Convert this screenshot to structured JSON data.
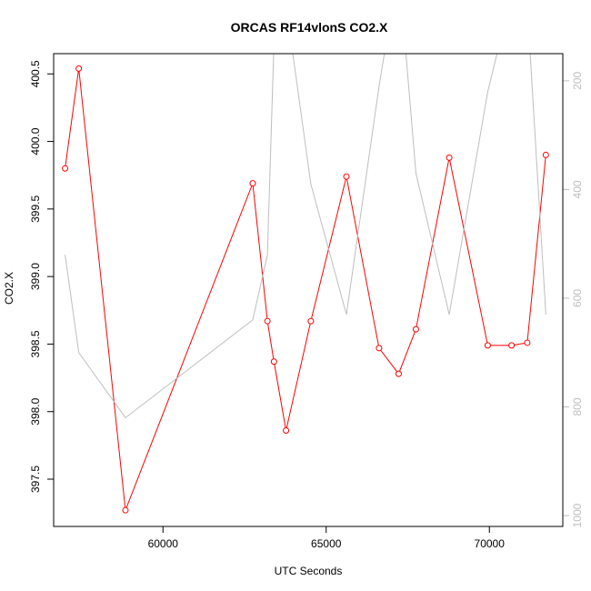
{
  "chart_data": {
    "type": "line",
    "title": "ORCAS RF14vlonS CO2.X",
    "xlabel": "UTC Seconds",
    "ylabel": "CO2.X",
    "xlim": [
      56650,
      72250
    ],
    "ylim": [
      397.15,
      400.65
    ],
    "y2lim": [
      1020,
      150
    ],
    "y2_inverted": true,
    "x_ticks": [
      60000,
      65000,
      70000
    ],
    "x_tick_labels": [
      "60000",
      "65000",
      "70000"
    ],
    "y_ticks": [
      397.5,
      398.0,
      398.5,
      399.0,
      399.5,
      400.0,
      400.5
    ],
    "y_tick_labels": [
      "397.5",
      "398.0",
      "398.5",
      "399.0",
      "399.5",
      "400.0",
      "400.5"
    ],
    "y2_ticks": [
      200,
      400,
      600,
      800,
      1000
    ],
    "y2_tick_labels": [
      "200",
      "400",
      "600",
      "800",
      "1000"
    ],
    "grid": false,
    "series": [
      {
        "axis": "left",
        "color": "#ff0000",
        "marker": "open-circle",
        "x": [
          57000,
          57420,
          58850,
          62750,
          63200,
          63400,
          63770,
          64530,
          65620,
          66620,
          67220,
          67750,
          68770,
          69950,
          70680,
          71160,
          71730
        ],
        "values": [
          399.8,
          400.54,
          397.27,
          399.69,
          398.67,
          398.37,
          397.86,
          398.67,
          399.74,
          398.47,
          398.28,
          398.61,
          399.88,
          398.49,
          398.49,
          398.51,
          399.9
        ]
      },
      {
        "axis": "right",
        "color": "#bebebe",
        "marker": "none",
        "x": [
          57000,
          57420,
          58850,
          62750,
          63200,
          63400,
          63770,
          64530,
          65620,
          66620,
          67220,
          67750,
          68770,
          69950,
          70680,
          71160,
          71730
        ],
        "values": [
          520,
          700,
          820,
          640,
          520,
          130,
          60,
          390,
          630,
          210,
          -10,
          370,
          630,
          220,
          40,
          60,
          630
        ]
      }
    ]
  }
}
